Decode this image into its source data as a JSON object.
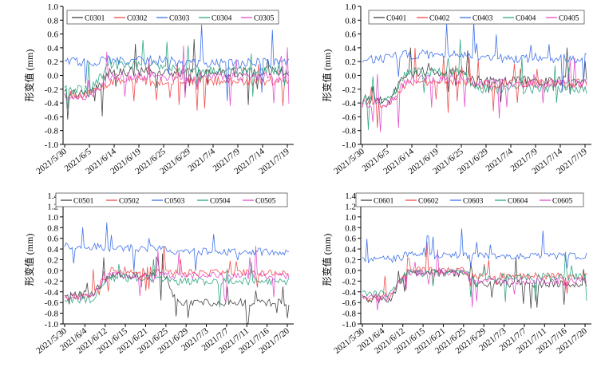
{
  "figure": "four deformation panels",
  "colors": {
    "s1": "#333333",
    "s2": "#f03c3c",
    "s3": "#2e64e8",
    "s4": "#1b9e77",
    "s5": "#e040c8"
  },
  "chart_data": [
    {
      "type": "line",
      "ylabel": "形变值 (mm)",
      "ylim": [
        -1.0,
        1.0
      ],
      "yticks": [
        "1.0",
        "0.8",
        "0.6",
        "0.4",
        "0.2",
        "0.0",
        "-0.2",
        "-0.4",
        "-0.6",
        "-0.8",
        "-1.0"
      ],
      "xticks": [
        "2021/5/30",
        "2021/6/5",
        "2021/6/14",
        "2021/6/19",
        "2021/6/25",
        "2021/6/29",
        "2021/7/4",
        "2021/7/9",
        "2021/7/14",
        "2021/7/19"
      ],
      "legend": [
        "C0301",
        "C0302",
        "C0303",
        "C0304",
        "C0305"
      ],
      "series": [
        {
          "name": "C0301",
          "levels": [
            -0.25,
            0.05,
            0.05
          ]
        },
        {
          "name": "C0302",
          "levels": [
            -0.28,
            -0.08,
            -0.08
          ]
        },
        {
          "name": "C0303",
          "levels": [
            0.2,
            0.22,
            0.18
          ]
        },
        {
          "name": "C0304",
          "levels": [
            -0.2,
            0.15,
            0.08
          ]
        },
        {
          "name": "C0305",
          "levels": [
            -0.3,
            -0.02,
            -0.03
          ]
        }
      ]
    },
    {
      "type": "line",
      "ylabel": "形变值 (mm)",
      "ylim": [
        -1.0,
        1.0
      ],
      "yticks": [
        "1.0",
        "0.8",
        "0.6",
        "0.4",
        "0.2",
        "0.0",
        "-0.2",
        "-0.4",
        "-0.6",
        "-0.8",
        "-1.0"
      ],
      "xticks": [
        "2021/5/30",
        "2021/6/5",
        "2021/6/14",
        "2021/6/19",
        "2021/6/25",
        "2021/6/29",
        "2021/7/4",
        "2021/7/9",
        "2021/7/14",
        "2021/7/19"
      ],
      "legend": [
        "C0401",
        "C0402",
        "C0403",
        "C0404",
        "C0405"
      ],
      "series": [
        {
          "name": "C0401",
          "levels": [
            -0.35,
            0.05,
            -0.08
          ]
        },
        {
          "name": "C0402",
          "levels": [
            -0.4,
            -0.08,
            -0.12
          ]
        },
        {
          "name": "C0403",
          "levels": [
            0.25,
            0.3,
            0.25
          ]
        },
        {
          "name": "C0404",
          "levels": [
            -0.35,
            0.05,
            -0.2
          ]
        },
        {
          "name": "C0405",
          "levels": [
            -0.4,
            -0.05,
            -0.12
          ]
        }
      ]
    },
    {
      "type": "line",
      "ylabel": "形变值 (mm)",
      "ylim": [
        -1.0,
        1.4
      ],
      "yticks": [
        "1.4",
        "1.2",
        "1.0",
        "0.8",
        "0.6",
        "0.4",
        "0.2",
        "0.0",
        "-0.2",
        "-0.4",
        "-0.6",
        "-0.8",
        "-1.0"
      ],
      "xticks": [
        "2021/5/30",
        "2021/6/4",
        "2021/6/12",
        "2021/6/15",
        "2021/6/21",
        "2021/6/25",
        "2021/6/29",
        "2021/7/3",
        "2021/7/7",
        "2021/7/11",
        "2021/7/16",
        "2021/7/20"
      ],
      "legend": [
        "C0501",
        "C0502",
        "C0503",
        "C0504",
        "C0505"
      ],
      "series": [
        {
          "name": "C0501",
          "levels": [
            -0.45,
            -0.1,
            -0.6
          ]
        },
        {
          "name": "C0502",
          "levels": [
            -0.5,
            0.0,
            -0.05
          ]
        },
        {
          "name": "C0503",
          "levels": [
            0.45,
            0.42,
            0.35
          ]
        },
        {
          "name": "C0504",
          "levels": [
            -0.55,
            -0.15,
            -0.2
          ]
        },
        {
          "name": "C0505",
          "levels": [
            -0.5,
            -0.08,
            -0.1
          ]
        }
      ]
    },
    {
      "type": "line",
      "ylabel": "形变值 (mm)",
      "ylim": [
        -1.0,
        1.4
      ],
      "yticks": [
        "1.4",
        "1.2",
        "1.0",
        "0.8",
        "0.6",
        "0.4",
        "0.2",
        "0.0",
        "-0.2",
        "-0.4",
        "-0.6",
        "-0.8",
        "-1.0"
      ],
      "xticks": [
        "2021/5/30",
        "2021/6/4",
        "2021/6/12",
        "2021/6/15",
        "2021/6/21",
        "2021/6/25",
        "2021/6/29",
        "2021/7/3",
        "2021/7/7",
        "2021/7/11",
        "2021/7/16",
        "2021/7/20"
      ],
      "legend": [
        "C0601",
        "C0602",
        "C0603",
        "C0604",
        "C0605"
      ],
      "series": [
        {
          "name": "C0601",
          "levels": [
            -0.55,
            -0.05,
            -0.25
          ]
        },
        {
          "name": "C0602",
          "levels": [
            -0.5,
            0.0,
            -0.1
          ]
        },
        {
          "name": "C0603",
          "levels": [
            0.2,
            0.28,
            0.28
          ]
        },
        {
          "name": "C0604",
          "levels": [
            -0.45,
            -0.05,
            -0.12
          ]
        },
        {
          "name": "C0605",
          "levels": [
            -0.5,
            -0.05,
            -0.2
          ]
        }
      ]
    }
  ]
}
